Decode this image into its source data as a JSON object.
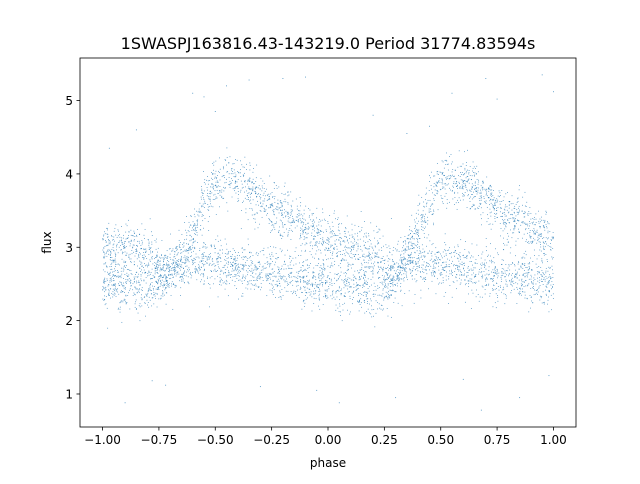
{
  "chart_data": {
    "type": "scatter",
    "title": "1SWASPJ163816.43-143219.0 Period 31774.83594s",
    "xlabel": "phase",
    "ylabel": "flux",
    "xlim": [
      -1.1,
      1.1
    ],
    "ylim": [
      0.55,
      5.58
    ],
    "x_ticks": [
      -1.0,
      -0.75,
      -0.5,
      -0.25,
      0.0,
      0.25,
      0.5,
      0.75,
      1.0
    ],
    "x_tick_labels": [
      "−1.00",
      "−0.75",
      "−0.50",
      "−0.25",
      "0.00",
      "0.25",
      "0.50",
      "0.75",
      "1.00"
    ],
    "y_ticks": [
      1,
      2,
      3,
      4,
      5
    ],
    "y_tick_labels": [
      "1",
      "2",
      "3",
      "4",
      "5"
    ],
    "grid": false,
    "legend": "none",
    "color": "#1f77b4",
    "series": [
      {
        "x": [
          -1.0,
          -0.9,
          -0.8,
          -0.75,
          -0.7,
          -0.65,
          -0.6,
          -0.55,
          -0.5,
          -0.45,
          -0.4,
          -0.3,
          -0.2,
          -0.1,
          0.0,
          0.1,
          0.2,
          0.25,
          0.3,
          0.35,
          0.4,
          0.45,
          0.5,
          0.55,
          0.6,
          0.7,
          0.8,
          0.9,
          1.0
        ],
        "y": [
          3.0,
          3.0,
          2.9,
          2.75,
          2.7,
          2.85,
          3.2,
          3.6,
          3.85,
          3.95,
          3.9,
          3.65,
          3.45,
          3.25,
          3.1,
          3.0,
          2.9,
          2.75,
          2.75,
          2.9,
          3.25,
          3.6,
          3.85,
          3.95,
          3.9,
          3.65,
          3.45,
          3.25,
          3.1
        ]
      },
      {
        "x": [
          -1.0,
          -0.9,
          -0.8,
          -0.75,
          -0.7,
          -0.65,
          -0.6,
          -0.5,
          -0.4,
          -0.3,
          -0.2,
          -0.1,
          0.0,
          0.1,
          0.2,
          0.25,
          0.3,
          0.35,
          0.4,
          0.5,
          0.6,
          0.7,
          0.8,
          0.9,
          1.0
        ],
        "y": [
          2.5,
          2.45,
          2.4,
          2.5,
          2.65,
          2.8,
          2.8,
          2.75,
          2.7,
          2.65,
          2.6,
          2.55,
          2.5,
          2.45,
          2.4,
          2.45,
          2.6,
          2.8,
          2.8,
          2.75,
          2.7,
          2.65,
          2.6,
          2.55,
          2.5
        ]
      }
    ],
    "outliers": [
      [
        -0.97,
        4.35
      ],
      [
        -0.9,
        0.88
      ],
      [
        -0.78,
        1.18
      ],
      [
        -0.72,
        1.12
      ],
      [
        -0.6,
        5.1
      ],
      [
        -0.55,
        5.05
      ],
      [
        -0.5,
        4.85
      ],
      [
        -0.45,
        5.2
      ],
      [
        -0.35,
        5.28
      ],
      [
        -0.2,
        5.3
      ],
      [
        -0.1,
        5.32
      ],
      [
        -0.05,
        1.05
      ],
      [
        0.05,
        0.88
      ],
      [
        0.3,
        0.95
      ],
      [
        0.45,
        4.65
      ],
      [
        0.55,
        5.1
      ],
      [
        0.68,
        0.78
      ],
      [
        0.7,
        5.3
      ],
      [
        0.75,
        5.02
      ],
      [
        0.85,
        0.95
      ],
      [
        0.95,
        5.35
      ],
      [
        0.98,
        1.25
      ],
      [
        1.0,
        5.12
      ],
      [
        0.2,
        4.8
      ],
      [
        -0.3,
        1.1
      ],
      [
        0.6,
        1.2
      ],
      [
        -0.85,
        4.6
      ],
      [
        0.35,
        4.55
      ]
    ],
    "scatter_density": 5200,
    "scatter_spread": 0.17
  }
}
